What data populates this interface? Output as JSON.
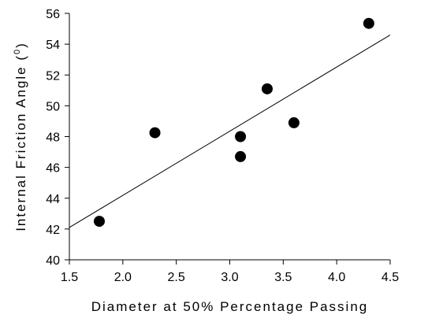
{
  "chart_data": {
    "type": "scatter",
    "title": "",
    "xlabel": "Diameter at 50% Percentage Passing",
    "ylabel_main": "Internal Friction Angle (",
    "ylabel_sup": "0",
    "ylabel_end": ")",
    "xlim": [
      1.5,
      4.5
    ],
    "ylim": [
      40,
      56
    ],
    "xticks": [
      1.5,
      2.0,
      2.5,
      3.0,
      3.5,
      4.0,
      4.5
    ],
    "xtick_labels": [
      "1.5",
      "2.0",
      "2.5",
      "3.0",
      "3.5",
      "4.0",
      "4.5"
    ],
    "yticks": [
      40,
      42,
      44,
      46,
      48,
      50,
      52,
      54,
      56
    ],
    "ytick_labels": [
      "40",
      "42",
      "44",
      "46",
      "48",
      "50",
      "52",
      "54",
      "56"
    ],
    "grid": false,
    "legend": "none",
    "marker_color": "#000000",
    "line_color": "#000000",
    "series": [
      {
        "points": [
          {
            "x": 1.78,
            "y": 42.5
          },
          {
            "x": 2.3,
            "y": 48.25
          },
          {
            "x": 3.1,
            "y": 48.0
          },
          {
            "x": 3.1,
            "y": 46.7
          },
          {
            "x": 3.35,
            "y": 51.1
          },
          {
            "x": 3.6,
            "y": 48.9
          },
          {
            "x": 4.3,
            "y": 55.35
          }
        ]
      }
    ],
    "trendline": {
      "x": [
        1.5,
        4.5
      ],
      "y": [
        42.1,
        54.6
      ]
    }
  }
}
